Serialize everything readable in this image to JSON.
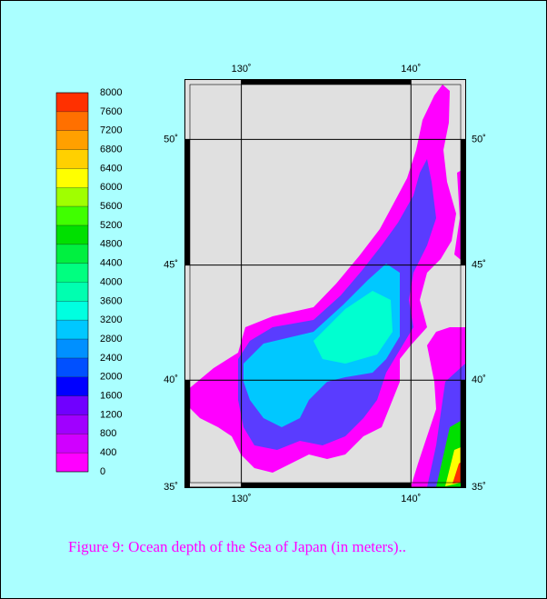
{
  "caption": "Figure 9: Ocean depth of the Sea of Japan (in meters)..",
  "colorbar": {
    "ticks": [
      0,
      400,
      800,
      1200,
      1600,
      2000,
      2400,
      2800,
      3200,
      3600,
      4000,
      4400,
      4800,
      5200,
      5600,
      6000,
      6400,
      6800,
      7200,
      7600,
      8000
    ],
    "colors": [
      "#ff00ff",
      "#d000ff",
      "#a000ff",
      "#7000ff",
      "#0000ff",
      "#0050ff",
      "#0090ff",
      "#00c8ff",
      "#00ffe0",
      "#00ffb0",
      "#00ff80",
      "#00f040",
      "#00e000",
      "#40ff00",
      "#a0ff00",
      "#ffff00",
      "#ffd000",
      "#ffa000",
      "#ff7000",
      "#ff3000"
    ]
  },
  "map": {
    "lonlim": [
      126.7,
      143.2
    ],
    "latlim": [
      35,
      52.2
    ],
    "lon_ticks": [
      {
        "value": 130,
        "label": "130˚"
      },
      {
        "value": 140,
        "label": "140˚"
      }
    ],
    "lat_ticks": [
      {
        "value": 35,
        "label": "35˚"
      },
      {
        "value": 40,
        "label": "40˚"
      },
      {
        "value": 45,
        "label": "45˚"
      },
      {
        "value": 50,
        "label": "50˚"
      }
    ],
    "land_color": "#e0e0e0"
  }
}
